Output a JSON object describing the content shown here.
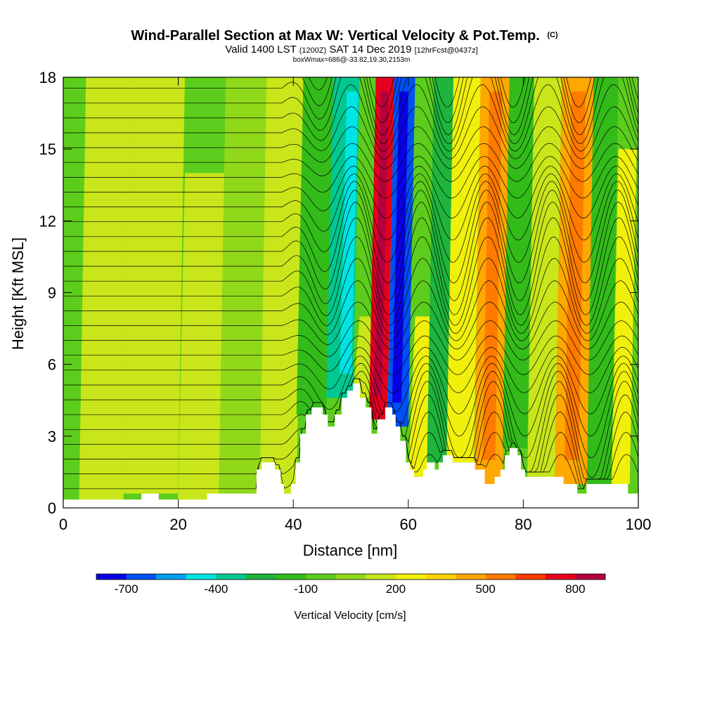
{
  "chart_data": {
    "type": "heatmap",
    "title": "Wind-Parallel Section at Max W: Vertical Velocity & Pot.Temp.",
    "title_mark": "(C)",
    "subtitle_parts": [
      "Valid 1400 LST",
      "(1200Z)",
      "SAT 14 Dec 2019",
      "[12hrFcst@0437z]"
    ],
    "subtitle2": "boxWmax=686@-33.82,19.30,2153m",
    "xlabel": "Distance [nm]",
    "ylabel": "Height [Kft MSL]",
    "xlim": [
      0,
      100
    ],
    "ylim": [
      0,
      18
    ],
    "xticks": [
      0,
      20,
      40,
      60,
      80,
      100
    ],
    "yticks": [
      0,
      3,
      6,
      9,
      12,
      15,
      18
    ],
    "colorbar": {
      "label": "Vertical Velocity [cm/s]",
      "tick_labels": [
        "-700",
        "-400",
        "-100",
        "200",
        "500",
        "800"
      ],
      "tick_values": [
        -700,
        -400,
        -100,
        200,
        500,
        800
      ],
      "levels": [
        -800,
        -700,
        -600,
        -500,
        -400,
        -300,
        -200,
        -100,
        0,
        100,
        200,
        300,
        400,
        500,
        600,
        700,
        800
      ],
      "colors": [
        "#0a00e6",
        "#0050f5",
        "#00a0f0",
        "#00e4e4",
        "#00c890",
        "#1fb43c",
        "#33bb1a",
        "#5ccd1c",
        "#90d81a",
        "#c8e61a",
        "#f0f00c",
        "#ffd200",
        "#ffa800",
        "#ff7a00",
        "#ff3c00",
        "#e6001e",
        "#b4003c"
      ]
    },
    "terrain_nm_kft": [
      [
        0,
        0.35
      ],
      [
        13.6,
        0.35
      ],
      [
        13.6,
        0.6
      ],
      [
        16.6,
        0.6
      ],
      [
        16.6,
        0.35
      ],
      [
        25,
        0.35
      ],
      [
        25,
        0.6
      ],
      [
        33.6,
        0.6
      ],
      [
        33.6,
        1.6
      ],
      [
        34.5,
        1.6
      ],
      [
        34.5,
        1.9
      ],
      [
        36.8,
        1.9
      ],
      [
        36.8,
        1.6
      ],
      [
        37.8,
        1.6
      ],
      [
        37.8,
        1.0
      ],
      [
        38.4,
        1.0
      ],
      [
        38.4,
        0.6
      ],
      [
        39.6,
        0.6
      ],
      [
        39.6,
        1.0
      ],
      [
        40.4,
        1.0
      ],
      [
        40.4,
        1.9
      ],
      [
        41.2,
        1.9
      ],
      [
        41.2,
        3.1
      ],
      [
        42.2,
        3.1
      ],
      [
        42.2,
        3.9
      ],
      [
        43.2,
        3.9
      ],
      [
        43.2,
        4.2
      ],
      [
        45.1,
        4.2
      ],
      [
        45.1,
        3.9
      ],
      [
        46,
        3.9
      ],
      [
        46,
        3.4
      ],
      [
        47.2,
        3.4
      ],
      [
        47.2,
        3.9
      ],
      [
        48.4,
        3.9
      ],
      [
        48.4,
        4.6
      ],
      [
        49.4,
        4.6
      ],
      [
        49.4,
        4.9
      ],
      [
        50.4,
        4.9
      ],
      [
        50.4,
        5.2
      ],
      [
        51.6,
        5.2
      ],
      [
        51.6,
        4.6
      ],
      [
        52.6,
        4.6
      ],
      [
        52.6,
        4.2
      ],
      [
        53.6,
        4.2
      ],
      [
        53.6,
        3.1
      ],
      [
        54.6,
        3.1
      ],
      [
        54.6,
        3.7
      ],
      [
        56,
        3.7
      ],
      [
        56,
        4.2
      ],
      [
        57.2,
        4.2
      ],
      [
        57.2,
        3.9
      ],
      [
        57.8,
        3.9
      ],
      [
        57.8,
        3.4
      ],
      [
        58.6,
        3.4
      ],
      [
        58.6,
        2.8
      ],
      [
        59.6,
        2.8
      ],
      [
        59.6,
        1.9
      ],
      [
        60.3,
        1.9
      ],
      [
        60.3,
        1.6
      ],
      [
        61,
        1.6
      ],
      [
        61,
        1.3
      ],
      [
        62.6,
        1.3
      ],
      [
        62.6,
        1.6
      ],
      [
        63.2,
        1.6
      ],
      [
        63.2,
        1.9
      ],
      [
        64.6,
        1.9
      ],
      [
        64.6,
        1.6
      ],
      [
        65.3,
        1.6
      ],
      [
        65.3,
        1.9
      ],
      [
        66,
        1.9
      ],
      [
        66,
        2.2
      ],
      [
        67.7,
        2.2
      ],
      [
        67.7,
        1.9
      ],
      [
        71.6,
        1.9
      ],
      [
        71.6,
        1.6
      ],
      [
        73.3,
        1.6
      ],
      [
        73.3,
        1.0
      ],
      [
        75,
        1.0
      ],
      [
        75,
        1.3
      ],
      [
        76,
        1.3
      ],
      [
        76,
        1.6
      ],
      [
        76.8,
        1.6
      ],
      [
        76.8,
        2.2
      ],
      [
        77.6,
        2.2
      ],
      [
        77.6,
        2.5
      ],
      [
        79,
        2.5
      ],
      [
        79,
        2.2
      ],
      [
        79.6,
        2.2
      ],
      [
        79.6,
        1.6
      ],
      [
        80.3,
        1.6
      ],
      [
        80.3,
        1.3
      ],
      [
        87,
        1.3
      ],
      [
        87,
        1.0
      ],
      [
        89.4,
        1.0
      ],
      [
        89.4,
        0.6
      ],
      [
        91,
        0.6
      ],
      [
        91,
        1.0
      ],
      [
        98.2,
        1.0
      ],
      [
        98.2,
        0.6
      ],
      [
        100,
        0.6
      ]
    ],
    "w_bands_cm_s": [
      {
        "x": 5.5,
        "w": 140,
        "top": 18.0
      },
      {
        "x": 15.4,
        "w": 120,
        "top": 18.0
      },
      {
        "x": 24.5,
        "w": 130,
        "top": 14.0
      },
      {
        "x": 29.6,
        "w": 90,
        "top": 18.0
      },
      {
        "x": 38.7,
        "w": 150,
        "top": 18.0
      },
      {
        "x": 42.4,
        "w": -120,
        "top": 18.0
      },
      {
        "x": 49.1,
        "w": -380,
        "top": 18.0
      },
      {
        "x": 51.6,
        "w": 160,
        "top": 8.0
      },
      {
        "x": 54.7,
        "w": 760,
        "top": 18.0
      },
      {
        "x": 58.0,
        "w": -690,
        "top": 18.0
      },
      {
        "x": 62.0,
        "w": 280,
        "top": 8.0
      },
      {
        "x": 64.5,
        "w": -300,
        "top": 18.0
      },
      {
        "x": 68.8,
        "w": 200,
        "top": 18.0
      },
      {
        "x": 74.0,
        "w": 430,
        "top": 18.0
      },
      {
        "x": 78.8,
        "w": -150,
        "top": 18.0
      },
      {
        "x": 82.6,
        "w": 190,
        "top": 18.0
      },
      {
        "x": 88.4,
        "w": 400,
        "top": 18.0
      },
      {
        "x": 93.7,
        "w": -150,
        "top": 18.0
      },
      {
        "x": 97.0,
        "w": 200,
        "top": 15.0
      }
    ]
  }
}
